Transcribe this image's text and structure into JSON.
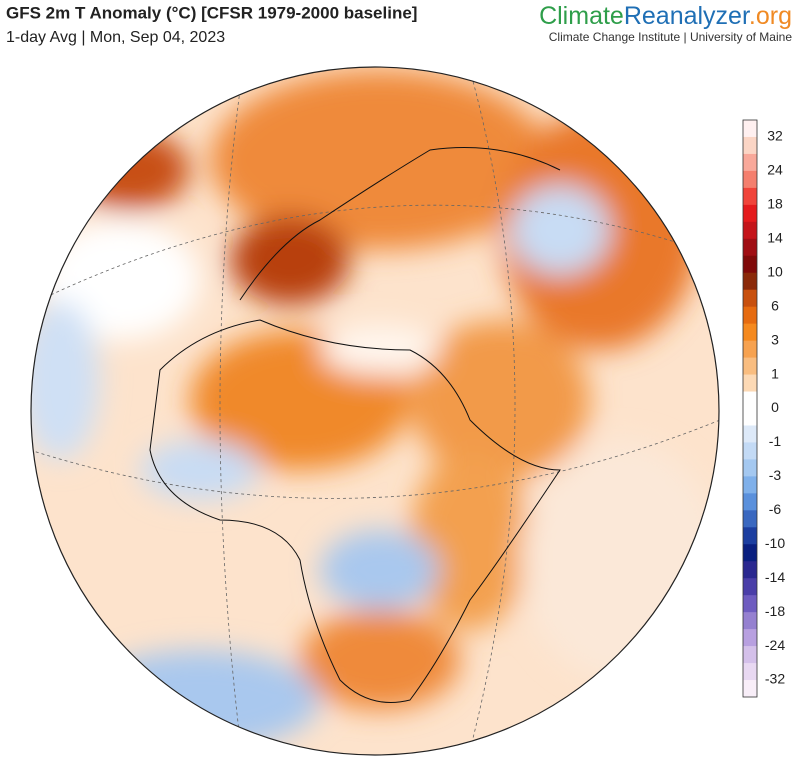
{
  "header": {
    "title": "GFS 2m T Anomaly (°C) [CFSR 1979-2000 baseline]",
    "subtitle": "1-day Avg | Mon, Sep 04, 2023"
  },
  "logo": {
    "part1": "Climate",
    "part2": "Reanalyzer",
    "part3": ".org",
    "tagline": "Climate Change Institute | University of Maine"
  },
  "colorbar": {
    "labels": [
      32,
      24,
      18,
      14,
      10,
      6,
      3,
      1,
      0,
      -1,
      -3,
      -6,
      -10,
      -14,
      -18,
      -24,
      -32
    ],
    "colors": [
      "#fff0f0",
      "#fbd5c5",
      "#f8a89a",
      "#f47f6e",
      "#f0443a",
      "#e41a1c",
      "#c4141a",
      "#a00e14",
      "#800a0a",
      "#8b2a0a",
      "#c8500e",
      "#e66b10",
      "#f5891e",
      "#f7a250",
      "#f9bd80",
      "#fcd9b5",
      "#ffffff",
      "#ffffff",
      "#dde9f8",
      "#c3daf5",
      "#a4c8f0",
      "#7fb0ea",
      "#5a90dc",
      "#3a68c0",
      "#1c3ea0",
      "#0a1f80",
      "#2a2890",
      "#4a3ea8",
      "#6e5cc0",
      "#9580d0",
      "#b8a0e0",
      "#d4c0ea",
      "#e8d8f2",
      "#f8eef8"
    ]
  }
}
